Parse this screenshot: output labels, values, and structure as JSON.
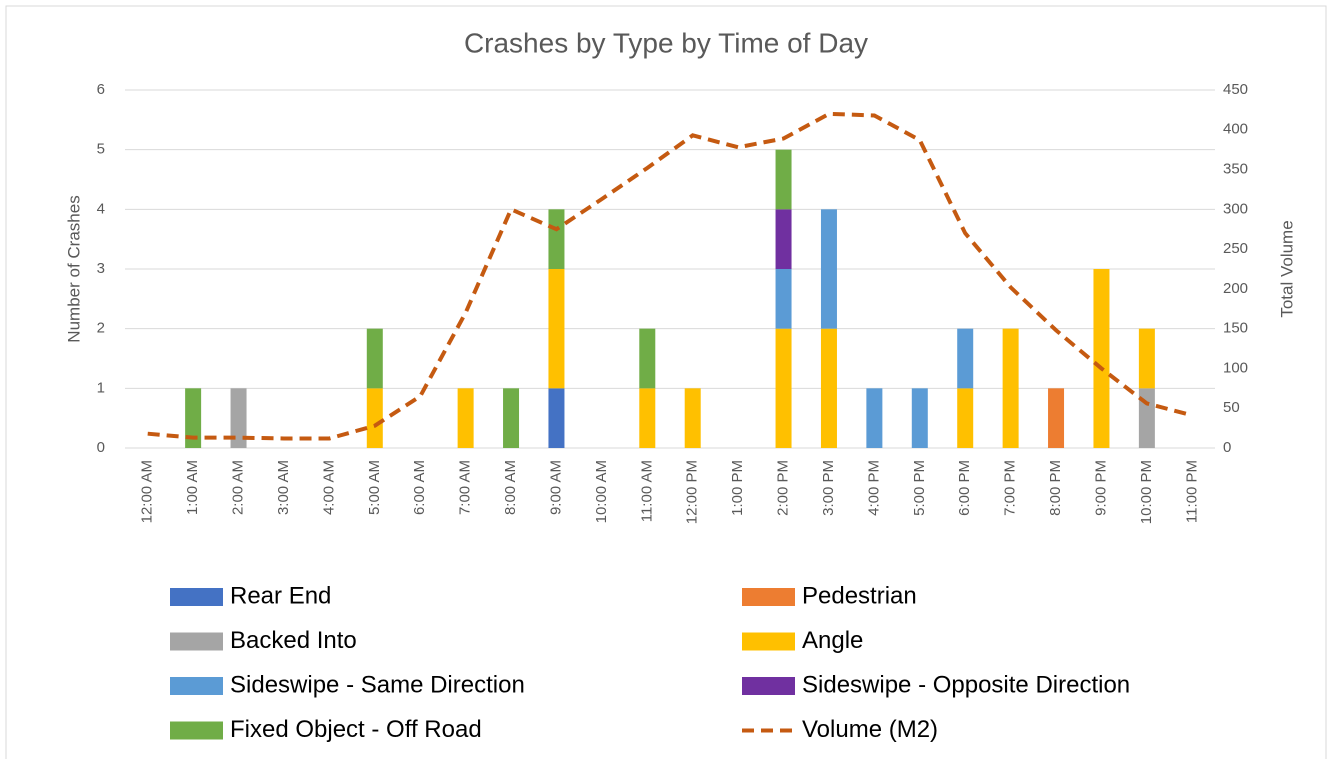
{
  "chart_data": {
    "type": "bar",
    "stacked": true,
    "title": "Crashes by Type by Time of Day",
    "y_label": "Number of Crashes",
    "y2_label": "Total Volume",
    "categories": [
      "12:00 AM",
      "1:00 AM",
      "2:00 AM",
      "3:00 AM",
      "4:00 AM",
      "5:00 AM",
      "6:00 AM",
      "7:00 AM",
      "8:00 AM",
      "9:00 AM",
      "10:00 AM",
      "11:00 AM",
      "12:00 PM",
      "1:00 PM",
      "2:00 PM",
      "3:00 PM",
      "4:00 PM",
      "5:00 PM",
      "6:00 PM",
      "7:00 PM",
      "8:00 PM",
      "9:00 PM",
      "10:00 PM",
      "11:00 PM"
    ],
    "series": [
      {
        "name": "Rear End",
        "color": "#4472c4",
        "values": [
          0,
          0,
          0,
          0,
          0,
          0,
          0,
          0,
          0,
          1,
          0,
          0,
          0,
          0,
          0,
          0,
          0,
          0,
          0,
          0,
          0,
          0,
          0,
          0
        ]
      },
      {
        "name": "Pedestrian",
        "color": "#ed7d31",
        "values": [
          0,
          0,
          0,
          0,
          0,
          0,
          0,
          0,
          0,
          0,
          0,
          0,
          0,
          0,
          0,
          0,
          0,
          0,
          0,
          0,
          1,
          0,
          0,
          0
        ]
      },
      {
        "name": "Backed Into",
        "color": "#a5a5a5",
        "values": [
          0,
          0,
          1,
          0,
          0,
          0,
          0,
          0,
          0,
          0,
          0,
          0,
          0,
          0,
          0,
          0,
          0,
          0,
          0,
          0,
          0,
          0,
          1,
          0
        ]
      },
      {
        "name": "Angle",
        "color": "#ffc000",
        "values": [
          0,
          0,
          0,
          0,
          0,
          1,
          0,
          1,
          0,
          2,
          0,
          1,
          1,
          0,
          2,
          2,
          0,
          0,
          1,
          2,
          0,
          3,
          1,
          0
        ]
      },
      {
        "name": "Sideswipe - Same Direction",
        "color": "#5b9bd5",
        "values": [
          0,
          0,
          0,
          0,
          0,
          0,
          0,
          0,
          0,
          0,
          0,
          0,
          0,
          0,
          1,
          2,
          1,
          1,
          1,
          0,
          0,
          0,
          0,
          0
        ]
      },
      {
        "name": "Sideswipe - Opposite Direction",
        "color": "#7030a0",
        "values": [
          0,
          0,
          0,
          0,
          0,
          0,
          0,
          0,
          0,
          0,
          0,
          0,
          0,
          0,
          1,
          0,
          0,
          0,
          0,
          0,
          0,
          0,
          0,
          0
        ]
      },
      {
        "name": "Fixed Object - Off Road",
        "color": "#70ad47",
        "values": [
          0,
          1,
          0,
          0,
          0,
          1,
          0,
          0,
          1,
          1,
          0,
          1,
          0,
          0,
          1,
          0,
          0,
          0,
          0,
          0,
          0,
          0,
          0,
          0
        ]
      },
      {
        "name": "Volume (M2)",
        "color": "#c55a11",
        "type": "line",
        "dashed": true,
        "axis": "y2",
        "values": [
          18,
          13,
          13,
          12,
          12,
          28,
          65,
          170,
          300,
          275,
          313,
          352,
          393,
          378,
          389,
          420,
          418,
          387,
          270,
          202,
          148,
          100,
          56,
          41
        ]
      }
    ],
    "ylim": [
      0,
      6
    ],
    "yticks": [
      0,
      1,
      2,
      3,
      4,
      5,
      6
    ],
    "y2lim": [
      0,
      450
    ],
    "y2ticks": [
      0,
      50,
      100,
      150,
      200,
      250,
      300,
      350,
      400,
      450
    ],
    "grid": true,
    "legend": "bottom"
  }
}
